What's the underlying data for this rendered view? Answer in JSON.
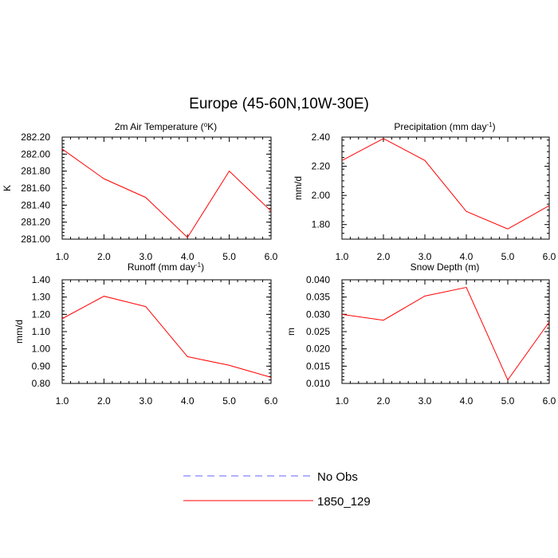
{
  "figure": {
    "title": "Europe (45-60N,10W-30E)"
  },
  "legend": {
    "items": [
      {
        "label": "No Obs",
        "color": "#6666ff",
        "dashed": true
      },
      {
        "label": "1850_129",
        "color": "#ff0000",
        "dashed": false
      }
    ]
  },
  "chart_data": [
    {
      "type": "line",
      "title": "2m Air Temperature (°K)",
      "ylabel": "K",
      "x": [
        1,
        2,
        3,
        4,
        5,
        6
      ],
      "xlim": [
        1,
        6
      ],
      "ylim": [
        281.0,
        282.2
      ],
      "xticks": [
        "1.0",
        "2.0",
        "3.0",
        "4.0",
        "5.0",
        "6.0"
      ],
      "yticks": [
        "281.00",
        "281.20",
        "281.40",
        "281.60",
        "281.80",
        "282.00",
        "282.20"
      ],
      "series": [
        {
          "name": "1850_129",
          "color": "#ff0000",
          "values": [
            282.06,
            281.71,
            281.49,
            281.02,
            281.8,
            281.33
          ]
        }
      ]
    },
    {
      "type": "line",
      "title": "Precipitation (mm day-1)",
      "ylabel": "mm/d",
      "x": [
        1,
        2,
        3,
        4,
        5,
        6
      ],
      "xlim": [
        1,
        6
      ],
      "ylim": [
        1.7,
        2.4
      ],
      "xticks": [
        "1.0",
        "2.0",
        "3.0",
        "4.0",
        "5.0",
        "6.0"
      ],
      "yticks": [
        "1.80",
        "2.00",
        "2.20",
        "2.40"
      ],
      "series": [
        {
          "name": "1850_129",
          "color": "#ff0000",
          "values": [
            2.24,
            2.39,
            2.24,
            1.89,
            1.77,
            1.93
          ]
        }
      ]
    },
    {
      "type": "line",
      "title": "Runoff (mm day-1)",
      "ylabel": "mm/d",
      "x": [
        1,
        2,
        3,
        4,
        5,
        6
      ],
      "xlim": [
        1,
        6
      ],
      "ylim": [
        0.8,
        1.4
      ],
      "xticks": [
        "1.0",
        "2.0",
        "3.0",
        "4.0",
        "5.0",
        "6.0"
      ],
      "yticks": [
        "0.80",
        "0.90",
        "1.00",
        "1.10",
        "1.20",
        "1.30",
        "1.40"
      ],
      "series": [
        {
          "name": "1850_129",
          "color": "#ff0000",
          "values": [
            1.175,
            1.305,
            1.245,
            0.955,
            0.905,
            0.835
          ]
        }
      ]
    },
    {
      "type": "line",
      "title": "Snow Depth (m)",
      "ylabel": "m",
      "x": [
        1,
        2,
        3,
        4,
        5,
        6
      ],
      "xlim": [
        1,
        6
      ],
      "ylim": [
        0.01,
        0.04
      ],
      "xticks": [
        "1.0",
        "2.0",
        "3.0",
        "4.0",
        "5.0",
        "6.0"
      ],
      "yticks": [
        "0.010",
        "0.015",
        "0.020",
        "0.025",
        "0.030",
        "0.035",
        "0.040"
      ],
      "series": [
        {
          "name": "1850_129",
          "color": "#ff0000",
          "values": [
            0.03,
            0.0283,
            0.0353,
            0.0378,
            0.011,
            0.0278
          ]
        }
      ]
    }
  ]
}
